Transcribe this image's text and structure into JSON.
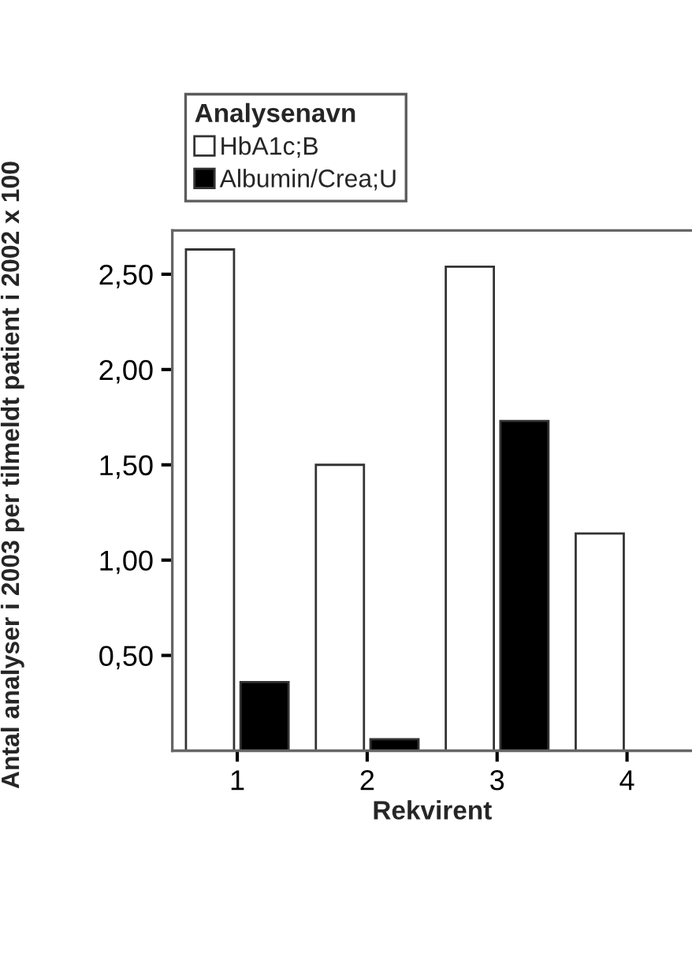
{
  "chart_data": {
    "type": "bar",
    "xlabel": "Rekvirent",
    "ylabel": "Antal analyser i 2003 per tilmeldt patient i 2002 x 100",
    "legend_title": "Analysenavn",
    "categories": [
      "1",
      "2",
      "3",
      "4"
    ],
    "series": [
      {
        "name": "HbA1c;B",
        "color": "#ffffff",
        "values": [
          2.63,
          1.5,
          2.54,
          1.14
        ]
      },
      {
        "name": "Albumin/Crea;U",
        "color": "#000000",
        "values": [
          0.36,
          0.06,
          1.73,
          null
        ]
      }
    ],
    "ylim": [
      0,
      2.73
    ],
    "yticks": [
      {
        "value": 0.5,
        "label": "0,50"
      },
      {
        "value": 1.0,
        "label": "1,00"
      },
      {
        "value": 1.5,
        "label": "1,50"
      },
      {
        "value": 2.0,
        "label": "2,00"
      },
      {
        "value": 2.5,
        "label": "2,50"
      }
    ],
    "grid": false,
    "legend": "top left"
  }
}
